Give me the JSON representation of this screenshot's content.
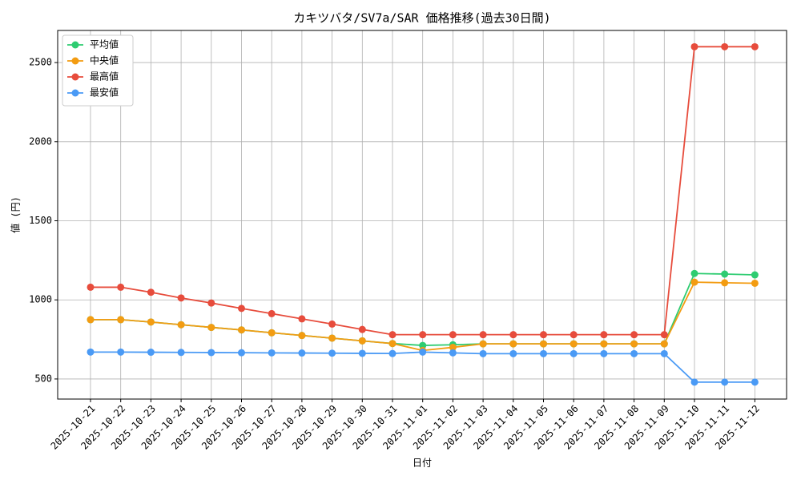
{
  "chart_data": {
    "type": "line",
    "title": "カキツバタ/SV7a/SAR 価格推移(過去30日間)",
    "x_label": "日付",
    "y_label": "値 (円)",
    "categories": [
      "2025-10-21",
      "2025-10-22",
      "2025-10-23",
      "2025-10-24",
      "2025-10-25",
      "2025-10-26",
      "2025-10-27",
      "2025-10-28",
      "2025-10-29",
      "2025-10-30",
      "2025-10-31",
      "2025-11-01",
      "2025-11-02",
      "2025-11-03",
      "2025-11-04",
      "2025-11-05",
      "2025-11-06",
      "2025-11-07",
      "2025-11-08",
      "2025-11-09",
      "2025-11-10",
      "2025-11-11",
      "2025-11-12"
    ],
    "series": [
      {
        "name": "平均値",
        "color": "#2ecc71",
        "values": [
          875,
          875,
          860,
          843,
          826,
          810,
          792,
          775,
          758,
          741,
          724,
          712,
          716,
          722,
          722,
          722,
          722,
          722,
          722,
          722,
          1167,
          1163,
          1158
        ]
      },
      {
        "name": "中央値",
        "color": "#f39c12",
        "values": [
          875,
          875,
          860,
          843,
          826,
          810,
          792,
          775,
          758,
          741,
          724,
          680,
          700,
          722,
          722,
          722,
          722,
          722,
          722,
          722,
          1112,
          1108,
          1105
        ]
      },
      {
        "name": "最高値",
        "color": "#e74c3c",
        "values": [
          1080,
          1080,
          1048,
          1012,
          980,
          946,
          913,
          880,
          847,
          813,
          780,
          780,
          780,
          780,
          780,
          780,
          780,
          780,
          780,
          780,
          2600,
          2600,
          2600
        ]
      },
      {
        "name": "最安値",
        "color": "#4a9af5",
        "values": [
          670,
          670,
          669,
          668,
          667,
          666,
          665,
          664,
          663,
          662,
          661,
          670,
          665,
          660,
          660,
          660,
          660,
          660,
          660,
          660,
          480,
          480,
          480
        ]
      }
    ],
    "ylim": [
      373,
      2703
    ],
    "yticks": [
      500,
      1000,
      1500,
      2000,
      2500
    ],
    "grid": true,
    "legend": "upper left"
  }
}
